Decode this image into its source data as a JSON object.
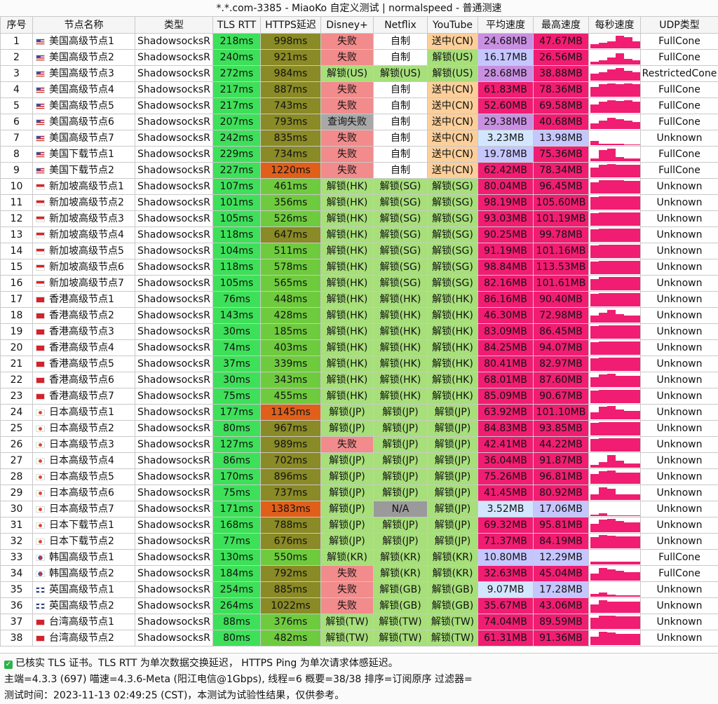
{
  "title": "*.*.com-3385 - MiaoKo 自定义测试 | normalspeed - 普通测速",
  "headers": [
    "序号",
    "节点名称",
    "类型",
    "TLS RTT",
    "HTTPS延迟",
    "Disney+",
    "Netflix",
    "YouTube",
    "平均速度",
    "最高速度",
    "每秒速度",
    "UDP类型"
  ],
  "colors": {
    "rtt_green": "#3ee05a",
    "https_olive": "#8a8a26",
    "https_orange": "#e0601a",
    "https_green": "#6fcb3e",
    "unlock_green": "#a7df7a",
    "fail_red": "#f28b8b",
    "query_fail_gray": "#a8a8a8",
    "na_gray": "#9a9a9a",
    "selfmade_white": "#ffffff",
    "cn_orange": "#fccf9a",
    "speed_pink": "#f01d72",
    "speed_purple": "#c98fe0",
    "speed_lavender": "#c6c6ff",
    "speed_lightblue": "#d3e6ff",
    "spark_pink": "#f01d72"
  },
  "rows": [
    {
      "n": "1",
      "flag": "us",
      "name": "美国高级节点1",
      "type": "ShadowsocksR",
      "rtt": "218ms",
      "https": "998ms",
      "disney": "失败",
      "netflix": "自制",
      "youtube": "送中(CN)",
      "avg": "24.68MB",
      "max": "47.67MB",
      "udp": "FullCone",
      "spark": [
        0.3,
        0.4,
        0.5,
        0.9,
        0.8,
        0.5
      ]
    },
    {
      "n": "2",
      "flag": "us",
      "name": "美国高级节点2",
      "type": "ShadowsocksR",
      "rtt": "240ms",
      "https": "921ms",
      "disney": "失败",
      "netflix": "自制",
      "youtube": "解锁(US)",
      "avg": "16.17MB",
      "max": "26.56MB",
      "udp": "FullCone",
      "spark": [
        0.2,
        0.3,
        0.5,
        0.8,
        0.4,
        0.3
      ]
    },
    {
      "n": "3",
      "flag": "us",
      "name": "美国高级节点3",
      "type": "ShadowsocksR",
      "rtt": "272ms",
      "https": "984ms",
      "disney": "解锁(US)",
      "netflix": "解锁(US)",
      "youtube": "解锁(US)",
      "avg": "28.68MB",
      "max": "38.88MB",
      "udp": "RestrictedCone",
      "spark": [
        0.5,
        0.6,
        0.8,
        0.9,
        0.7,
        0.6
      ]
    },
    {
      "n": "4",
      "flag": "us",
      "name": "美国高级节点4",
      "type": "ShadowsocksR",
      "rtt": "217ms",
      "https": "887ms",
      "disney": "失败",
      "netflix": "自制",
      "youtube": "送中(CN)",
      "avg": "61.83MB",
      "max": "78.36MB",
      "udp": "FullCone",
      "spark": [
        0.7,
        0.9,
        0.95,
        0.9,
        0.95,
        0.9
      ]
    },
    {
      "n": "5",
      "flag": "us",
      "name": "美国高级节点5",
      "type": "ShadowsocksR",
      "rtt": "217ms",
      "https": "743ms",
      "disney": "失败",
      "netflix": "自制",
      "youtube": "送中(CN)",
      "avg": "52.60MB",
      "max": "69.58MB",
      "udp": "FullCone",
      "spark": [
        0.6,
        0.8,
        0.9,
        0.85,
        0.9,
        0.8
      ]
    },
    {
      "n": "6",
      "flag": "us",
      "name": "美国高级节点6",
      "type": "ShadowsocksR",
      "rtt": "207ms",
      "https": "793ms",
      "disney": "查询失败",
      "netflix": "自制",
      "youtube": "送中(CN)",
      "avg": "29.38MB",
      "max": "40.68MB",
      "udp": "FullCone",
      "spark": [
        0.4,
        0.6,
        0.8,
        0.7,
        0.6,
        0.5
      ]
    },
    {
      "n": "7",
      "flag": "us",
      "name": "美国高级节点7",
      "type": "ShadowsocksR",
      "rtt": "242ms",
      "https": "835ms",
      "disney": "失败",
      "netflix": "自制",
      "youtube": "送中(CN)",
      "avg": "3.23MB",
      "max": "13.98MB",
      "udp": "Unknown",
      "spark": [
        0.3,
        0.1,
        0.1,
        0.1,
        0.05,
        0.05
      ]
    },
    {
      "n": "8",
      "flag": "us",
      "name": "美国下载节点1",
      "type": "ShadowsocksR",
      "rtt": "229ms",
      "https": "734ms",
      "disney": "失败",
      "netflix": "自制",
      "youtube": "送中(CN)",
      "avg": "19.78MB",
      "max": "75.36MB",
      "udp": "FullCone",
      "spark": [
        0.2,
        0.8,
        0.9,
        0.3,
        0.2,
        0.2
      ]
    },
    {
      "n": "9",
      "flag": "us",
      "name": "美国下载节点2",
      "type": "ShadowsocksR",
      "rtt": "227ms",
      "https": "1220ms",
      "disney": "失败",
      "netflix": "自制",
      "youtube": "送中(CN)",
      "avg": "62.42MB",
      "max": "78.34MB",
      "udp": "FullCone",
      "spark": [
        0.7,
        0.9,
        0.95,
        0.9,
        0.9,
        0.9
      ]
    },
    {
      "n": "10",
      "flag": "sg",
      "name": "新加坡高级节点1",
      "type": "ShadowsocksR",
      "rtt": "107ms",
      "https": "461ms",
      "disney": "解锁(HK)",
      "netflix": "解锁(SG)",
      "youtube": "解锁(SG)",
      "avg": "80.04MB",
      "max": "96.45MB",
      "udp": "Unknown",
      "spark": [
        0.8,
        0.95,
        0.95,
        0.95,
        0.9,
        0.9
      ]
    },
    {
      "n": "11",
      "flag": "sg",
      "name": "新加坡高级节点2",
      "type": "ShadowsocksR",
      "rtt": "101ms",
      "https": "356ms",
      "disney": "解锁(HK)",
      "netflix": "解锁(SG)",
      "youtube": "解锁(SG)",
      "avg": "98.19MB",
      "max": "105.60MB",
      "udp": "Unknown",
      "spark": [
        0.9,
        0.95,
        0.95,
        0.95,
        0.95,
        0.95
      ]
    },
    {
      "n": "12",
      "flag": "sg",
      "name": "新加坡高级节点3",
      "type": "ShadowsocksR",
      "rtt": "105ms",
      "https": "526ms",
      "disney": "解锁(HK)",
      "netflix": "解锁(SG)",
      "youtube": "解锁(SG)",
      "avg": "93.03MB",
      "max": "101.19MB",
      "udp": "Unknown",
      "spark": [
        0.9,
        0.95,
        0.95,
        0.95,
        0.95,
        0.95
      ]
    },
    {
      "n": "13",
      "flag": "sg",
      "name": "新加坡高级节点4",
      "type": "ShadowsocksR",
      "rtt": "118ms",
      "https": "647ms",
      "disney": "解锁(HK)",
      "netflix": "解锁(SG)",
      "youtube": "解锁(SG)",
      "avg": "90.25MB",
      "max": "99.78MB",
      "udp": "Unknown",
      "spark": [
        0.9,
        0.95,
        0.95,
        0.95,
        0.95,
        0.95
      ]
    },
    {
      "n": "14",
      "flag": "sg",
      "name": "新加坡高级节点5",
      "type": "ShadowsocksR",
      "rtt": "104ms",
      "https": "511ms",
      "disney": "解锁(HK)",
      "netflix": "解锁(SG)",
      "youtube": "解锁(SG)",
      "avg": "91.19MB",
      "max": "101.16MB",
      "udp": "Unknown",
      "spark": [
        0.9,
        0.95,
        0.95,
        0.95,
        0.95,
        0.95
      ]
    },
    {
      "n": "15",
      "flag": "sg",
      "name": "新加坡高级节点6",
      "type": "ShadowsocksR",
      "rtt": "118ms",
      "https": "578ms",
      "disney": "解锁(HK)",
      "netflix": "解锁(SG)",
      "youtube": "解锁(SG)",
      "avg": "98.84MB",
      "max": "113.53MB",
      "udp": "Unknown",
      "spark": [
        0.9,
        0.95,
        0.95,
        0.95,
        0.95,
        0.95
      ]
    },
    {
      "n": "16",
      "flag": "sg",
      "name": "新加坡高级节点7",
      "type": "ShadowsocksR",
      "rtt": "105ms",
      "https": "565ms",
      "disney": "解锁(HK)",
      "netflix": "解锁(SG)",
      "youtube": "解锁(SG)",
      "avg": "82.16MB",
      "max": "101.61MB",
      "udp": "Unknown",
      "spark": [
        0.8,
        0.95,
        0.95,
        0.95,
        0.95,
        0.95
      ]
    },
    {
      "n": "17",
      "flag": "hk",
      "name": "香港高级节点1",
      "type": "ShadowsocksR",
      "rtt": "76ms",
      "https": "448ms",
      "disney": "解锁(HK)",
      "netflix": "解锁(HK)",
      "youtube": "解锁(HK)",
      "avg": "86.16MB",
      "max": "90.40MB",
      "udp": "Unknown",
      "spark": [
        0.9,
        0.95,
        0.95,
        0.95,
        0.95,
        0.95
      ]
    },
    {
      "n": "18",
      "flag": "hk",
      "name": "香港高级节点2",
      "type": "ShadowsocksR",
      "rtt": "143ms",
      "https": "428ms",
      "disney": "解锁(HK)",
      "netflix": "解锁(HK)",
      "youtube": "解锁(HK)",
      "avg": "46.30MB",
      "max": "72.98MB",
      "udp": "Unknown",
      "spark": [
        0.5,
        0.7,
        0.9,
        0.6,
        0.5,
        0.5
      ]
    },
    {
      "n": "19",
      "flag": "hk",
      "name": "香港高级节点3",
      "type": "ShadowsocksR",
      "rtt": "30ms",
      "https": "185ms",
      "disney": "解锁(HK)",
      "netflix": "解锁(HK)",
      "youtube": "解锁(HK)",
      "avg": "83.09MB",
      "max": "86.45MB",
      "udp": "Unknown",
      "spark": [
        0.9,
        0.95,
        0.95,
        0.95,
        0.95,
        0.95
      ]
    },
    {
      "n": "20",
      "flag": "hk",
      "name": "香港高级节点4",
      "type": "ShadowsocksR",
      "rtt": "74ms",
      "https": "403ms",
      "disney": "解锁(HK)",
      "netflix": "解锁(HK)",
      "youtube": "解锁(HK)",
      "avg": "84.25MB",
      "max": "94.07MB",
      "udp": "Unknown",
      "spark": [
        0.9,
        0.95,
        0.95,
        0.95,
        0.95,
        0.95
      ]
    },
    {
      "n": "21",
      "flag": "hk",
      "name": "香港高级节点5",
      "type": "ShadowsocksR",
      "rtt": "37ms",
      "https": "339ms",
      "disney": "解锁(HK)",
      "netflix": "解锁(HK)",
      "youtube": "解锁(HK)",
      "avg": "80.41MB",
      "max": "82.97MB",
      "udp": "Unknown",
      "spark": [
        0.9,
        0.95,
        0.95,
        0.95,
        0.95,
        0.95
      ]
    },
    {
      "n": "22",
      "flag": "hk",
      "name": "香港高级节点6",
      "type": "ShadowsocksR",
      "rtt": "30ms",
      "https": "343ms",
      "disney": "解锁(HK)",
      "netflix": "解锁(HK)",
      "youtube": "解锁(HK)",
      "avg": "68.01MB",
      "max": "87.60MB",
      "udp": "Unknown",
      "spark": [
        0.7,
        0.9,
        0.95,
        0.8,
        0.8,
        0.8
      ]
    },
    {
      "n": "23",
      "flag": "hk",
      "name": "香港高级节点7",
      "type": "ShadowsocksR",
      "rtt": "75ms",
      "https": "455ms",
      "disney": "解锁(HK)",
      "netflix": "解锁(HK)",
      "youtube": "解锁(HK)",
      "avg": "85.09MB",
      "max": "90.67MB",
      "udp": "Unknown",
      "spark": [
        0.9,
        0.95,
        0.95,
        0.95,
        0.95,
        0.95
      ]
    },
    {
      "n": "24",
      "flag": "jp",
      "name": "日本高级节点1",
      "type": "ShadowsocksR",
      "rtt": "177ms",
      "https": "1145ms",
      "disney": "解锁(JP)",
      "netflix": "解锁(JP)",
      "youtube": "解锁(JP)",
      "avg": "63.92MB",
      "max": "101.10MB",
      "udp": "Unknown",
      "spark": [
        0.5,
        0.9,
        0.95,
        0.7,
        0.6,
        0.6
      ]
    },
    {
      "n": "25",
      "flag": "jp",
      "name": "日本高级节点2",
      "type": "ShadowsocksR",
      "rtt": "80ms",
      "https": "967ms",
      "disney": "解锁(JP)",
      "netflix": "解锁(JP)",
      "youtube": "解锁(JP)",
      "avg": "84.83MB",
      "max": "93.85MB",
      "udp": "Unknown",
      "spark": [
        0.9,
        0.95,
        0.95,
        0.95,
        0.95,
        0.95
      ]
    },
    {
      "n": "26",
      "flag": "jp",
      "name": "日本高级节点3",
      "type": "ShadowsocksR",
      "rtt": "127ms",
      "https": "989ms",
      "disney": "失败",
      "netflix": "解锁(JP)",
      "youtube": "解锁(JP)",
      "avg": "42.41MB",
      "max": "44.22MB",
      "udp": "Unknown",
      "spark": [
        0.9,
        0.95,
        0.95,
        0.95,
        0.95,
        0.95
      ]
    },
    {
      "n": "27",
      "flag": "jp",
      "name": "日本高级节点4",
      "type": "ShadowsocksR",
      "rtt": "86ms",
      "https": "702ms",
      "disney": "解锁(JP)",
      "netflix": "解锁(JP)",
      "youtube": "解锁(JP)",
      "avg": "36.04MB",
      "max": "91.87MB",
      "udp": "Unknown",
      "spark": [
        0.2,
        0.4,
        0.9,
        0.5,
        0.3,
        0.3
      ]
    },
    {
      "n": "28",
      "flag": "jp",
      "name": "日本高级节点5",
      "type": "ShadowsocksR",
      "rtt": "170ms",
      "https": "896ms",
      "disney": "解锁(JP)",
      "netflix": "解锁(JP)",
      "youtube": "解锁(JP)",
      "avg": "75.26MB",
      "max": "96.81MB",
      "udp": "Unknown",
      "spark": [
        0.7,
        0.9,
        0.95,
        0.8,
        0.8,
        0.8
      ]
    },
    {
      "n": "29",
      "flag": "jp",
      "name": "日本高级节点6",
      "type": "ShadowsocksR",
      "rtt": "75ms",
      "https": "737ms",
      "disney": "解锁(JP)",
      "netflix": "解锁(JP)",
      "youtube": "解锁(JP)",
      "avg": "41.45MB",
      "max": "80.92MB",
      "udp": "Unknown",
      "spark": [
        0.4,
        0.9,
        0.8,
        0.4,
        0.4,
        0.4
      ]
    },
    {
      "n": "30",
      "flag": "jp",
      "name": "日本高级节点7",
      "type": "ShadowsocksR",
      "rtt": "171ms",
      "https": "1383ms",
      "disney": "解锁(JP)",
      "netflix": "N/A",
      "youtube": "解锁(JP)",
      "avg": "3.52MB",
      "max": "17.06MB",
      "udp": "Unknown",
      "spark": [
        0.1,
        0.2,
        0.05,
        0.05,
        0.05,
        0.05
      ]
    },
    {
      "n": "31",
      "flag": "jp",
      "name": "日本下载节点1",
      "type": "ShadowsocksR",
      "rtt": "168ms",
      "https": "788ms",
      "disney": "解锁(JP)",
      "netflix": "解锁(JP)",
      "youtube": "解锁(JP)",
      "avg": "69.32MB",
      "max": "95.81MB",
      "udp": "Unknown",
      "spark": [
        0.6,
        0.9,
        0.95,
        0.8,
        0.7,
        0.7
      ]
    },
    {
      "n": "32",
      "flag": "jp",
      "name": "日本下载节点2",
      "type": "ShadowsocksR",
      "rtt": "77ms",
      "https": "676ms",
      "disney": "解锁(JP)",
      "netflix": "解锁(JP)",
      "youtube": "解锁(JP)",
      "avg": "71.37MB",
      "max": "84.19MB",
      "udp": "Unknown",
      "spark": [
        0.8,
        0.95,
        0.9,
        0.85,
        0.85,
        0.85
      ]
    },
    {
      "n": "33",
      "flag": "kr",
      "name": "韩国高级节点1",
      "type": "ShadowsocksR",
      "rtt": "130ms",
      "https": "550ms",
      "disney": "解锁(KR)",
      "netflix": "解锁(KR)",
      "youtube": "解锁(KR)",
      "avg": "10.80MB",
      "max": "12.29MB",
      "udp": "FullCone",
      "spark": [
        0.2,
        0.2,
        0.2,
        0.2,
        0.2,
        0.2
      ]
    },
    {
      "n": "34",
      "flag": "kr",
      "name": "韩国高级节点2",
      "type": "ShadowsocksR",
      "rtt": "184ms",
      "https": "792ms",
      "disney": "失败",
      "netflix": "解锁(KR)",
      "youtube": "解锁(KR)",
      "avg": "32.63MB",
      "max": "45.04MB",
      "udp": "FullCone",
      "spark": [
        0.5,
        0.9,
        0.8,
        0.7,
        0.6,
        0.6
      ]
    },
    {
      "n": "35",
      "flag": "gb",
      "name": "英国高级节点1",
      "type": "ShadowsocksR",
      "rtt": "254ms",
      "https": "885ms",
      "disney": "失败",
      "netflix": "解锁(GB)",
      "youtube": "解锁(GB)",
      "avg": "9.07MB",
      "max": "17.28MB",
      "udp": "Unknown",
      "spark": [
        0.2,
        0.3,
        0.15,
        0.1,
        0.1,
        0.1
      ]
    },
    {
      "n": "36",
      "flag": "gb",
      "name": "英国高级节点2",
      "type": "ShadowsocksR",
      "rtt": "264ms",
      "https": "1022ms",
      "disney": "失败",
      "netflix": "解锁(GB)",
      "youtube": "解锁(GB)",
      "avg": "35.67MB",
      "max": "43.06MB",
      "udp": "Unknown",
      "spark": [
        0.6,
        0.9,
        0.8,
        0.8,
        0.8,
        0.8
      ]
    },
    {
      "n": "37",
      "flag": "tw",
      "name": "台湾高级节点1",
      "type": "ShadowsocksR",
      "rtt": "88ms",
      "https": "376ms",
      "disney": "解锁(TW)",
      "netflix": "解锁(TW)",
      "youtube": "解锁(TW)",
      "avg": "74.04MB",
      "max": "89.59MB",
      "udp": "Unknown",
      "spark": [
        0.8,
        0.95,
        0.95,
        0.9,
        0.9,
        0.9
      ]
    },
    {
      "n": "38",
      "flag": "tw",
      "name": "台湾高级节点2",
      "type": "ShadowsocksR",
      "rtt": "80ms",
      "https": "482ms",
      "disney": "解锁(TW)",
      "netflix": "解锁(TW)",
      "youtube": "解锁(TW)",
      "avg": "61.31MB",
      "max": "91.36MB",
      "udp": "Unknown",
      "spark": [
        0.6,
        0.95,
        0.9,
        0.8,
        0.8,
        0.8
      ]
    }
  ],
  "footer": {
    "line1": "已核实 TLS 证书。TLS RTT 为单次数据交换延迟， HTTPS Ping 为单次请求体感延迟。",
    "line2": "主端=4.3.3 (697) 喵速=4.3.6-Meta (阳江电信@1Gbps), 线程=6 概要=38/38 排序=订阅原序 过滤器=",
    "line3": "测试时间：2023-11-13 02:49:25 (CST)，本测试为试验性结果，仅供参考。"
  }
}
